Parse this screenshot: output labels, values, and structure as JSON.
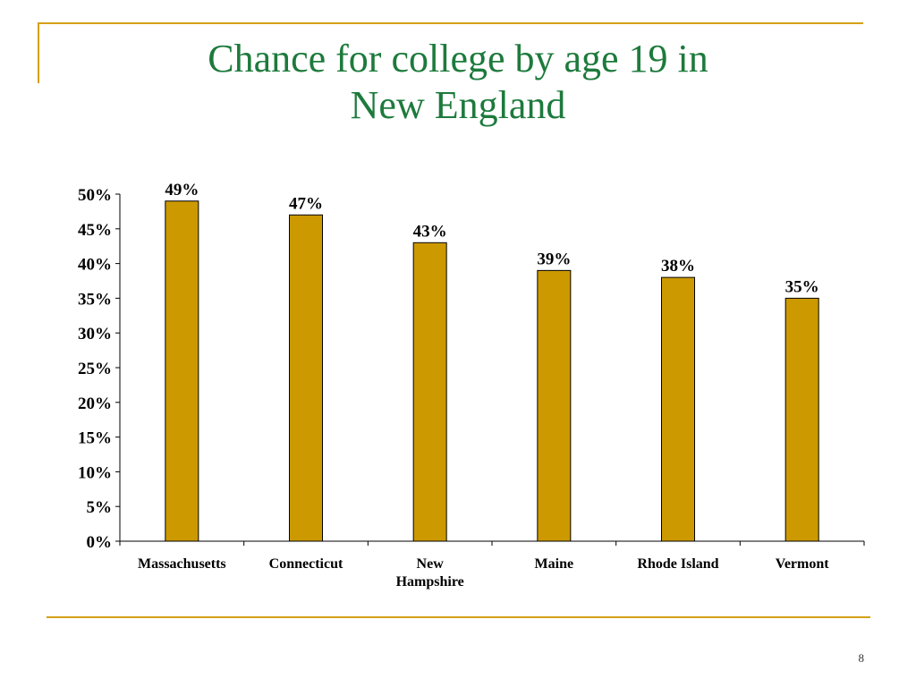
{
  "slide": {
    "title_line1": "Chance for college by age 19 in",
    "title_line2": "New England",
    "page_number": "8"
  },
  "colors": {
    "title": "#1d7a3c",
    "accent_line": "#d4a017",
    "bar_fill": "#cc9900",
    "bar_stroke": "#000000",
    "axis": "#000000",
    "text": "#000000"
  },
  "chart_data": {
    "type": "bar",
    "title": "",
    "xlabel": "",
    "ylabel": "",
    "categories": [
      "Massachusetts",
      "Connecticut",
      "New Hampshire",
      "Maine",
      "Rhode Island",
      "Vermont"
    ],
    "category_lines": [
      [
        "Massachusetts"
      ],
      [
        "Connecticut"
      ],
      [
        "New",
        "Hampshire"
      ],
      [
        "Maine"
      ],
      [
        "Rhode Island"
      ],
      [
        "Vermont"
      ]
    ],
    "values": [
      49,
      47,
      43,
      39,
      38,
      35
    ],
    "data_labels": [
      "49%",
      "47%",
      "43%",
      "39%",
      "38%",
      "35%"
    ],
    "ylim": [
      0,
      50
    ],
    "yticks": [
      0,
      5,
      10,
      15,
      20,
      25,
      30,
      35,
      40,
      45,
      50
    ],
    "ytick_labels": [
      "0%",
      "5%",
      "10%",
      "15%",
      "20%",
      "25%",
      "30%",
      "35%",
      "40%",
      "45%",
      "50%"
    ],
    "grid": false,
    "legend": "none"
  }
}
